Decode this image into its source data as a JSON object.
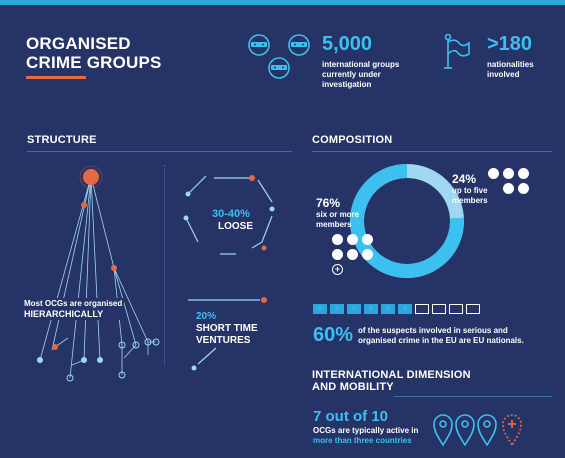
{
  "header": {
    "title_line1": "ORGANISED",
    "title_line2": "CRIME GROUPS"
  },
  "stats": {
    "groups_value": "5,000",
    "groups_line1": "international groups",
    "groups_line2": "currently under",
    "groups_line3": "investigation",
    "nationalities_value": ">180",
    "nationalities_line1": "nationalities",
    "nationalities_line2": "involved"
  },
  "structure": {
    "heading": "STRUCTURE",
    "loose_pct": "30-40%",
    "loose_label": "LOOSE",
    "short_pct": "20%",
    "short_line1": "SHORT TIME",
    "short_line2": "VENTURES",
    "hier_line1": "Most OCGs are organised",
    "hier_line2": "HIERARCHICALLY"
  },
  "composition": {
    "heading": "COMPOSITION",
    "small_pct": "24%",
    "small_line1": "up to five",
    "small_line2": "members",
    "large_pct": "76%",
    "large_line1": "six or more",
    "large_line2": "members",
    "eu_pct": "60%",
    "eu_line1": "of the suspects involved in serious and",
    "eu_line2": "organised crime in the EU are EU nationals.",
    "eu_boxes_filled": 6,
    "eu_boxes_total": 10
  },
  "international": {
    "heading_line1": "INTERNATIONAL DIMENSION",
    "heading_line2": "AND MOBILITY",
    "ratio": "7 out of 10",
    "line1": "OCGs are typically active in",
    "line2": "more than three countries"
  },
  "chart_data": {
    "type": "pie",
    "categories": [
      "up to five members",
      "six or more members"
    ],
    "values": [
      24,
      76
    ]
  },
  "colors": {
    "background": "#253367",
    "accent_blue": "#3cc0ef",
    "accent_orange": "#e8683f",
    "light_blue": "#9fd8f0"
  }
}
